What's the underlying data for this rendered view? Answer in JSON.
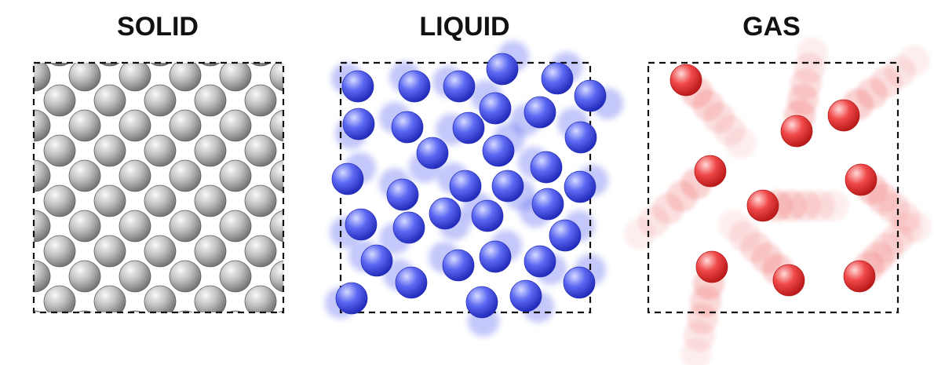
{
  "panels": [
    {
      "id": "solid",
      "title": "SOLID",
      "particle_color": "#a9a9a9"
    },
    {
      "id": "liquid",
      "title": "LIQUID",
      "particle_color": "#4d5cf0"
    },
    {
      "id": "gas",
      "title": "GAS",
      "particle_color": "#ee3c3c"
    }
  ]
}
